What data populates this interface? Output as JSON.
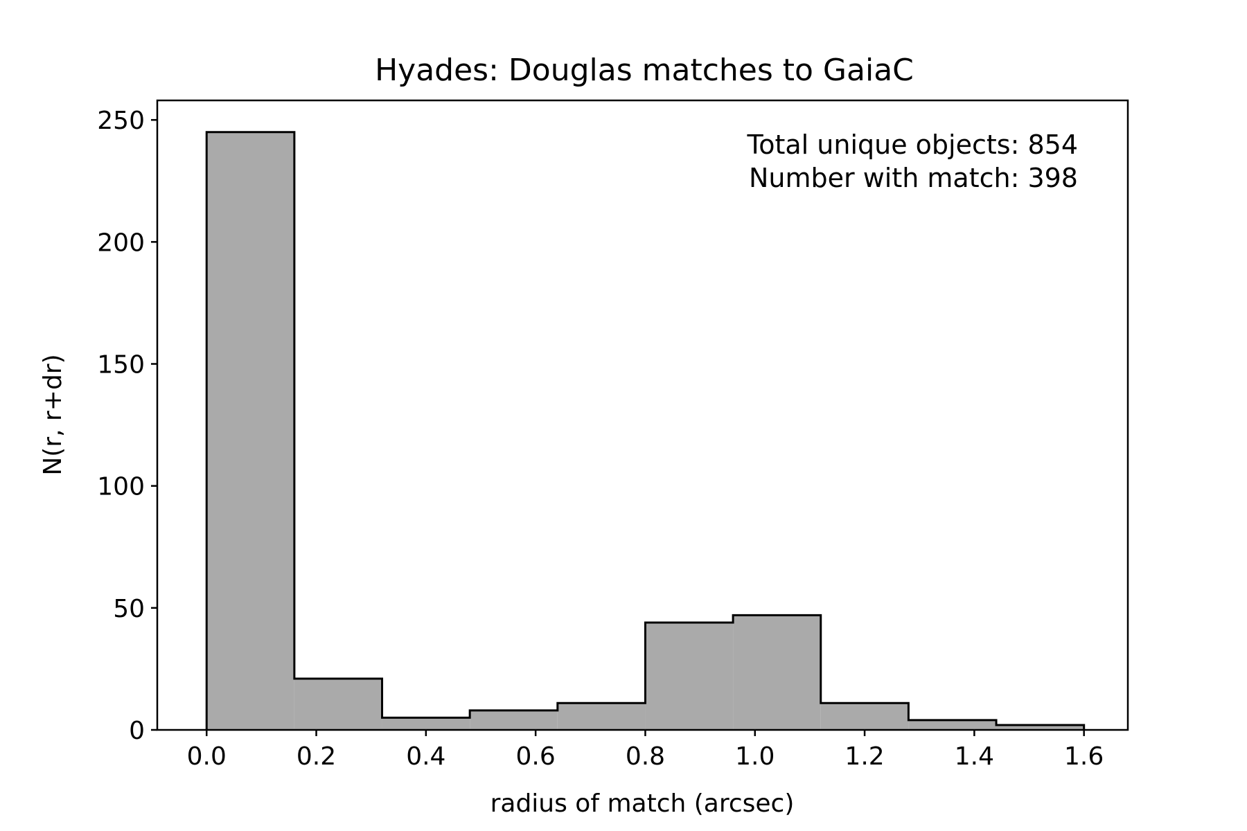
{
  "chart_data": {
    "type": "bar",
    "title": "Hyades: Douglas matches to GaiaC",
    "xlabel": "radius of match (arcsec)",
    "ylabel": "N(r, r+dr)",
    "bin_edges": [
      0.0,
      0.16,
      0.32,
      0.48,
      0.64,
      0.8,
      0.96,
      1.12,
      1.28,
      1.44,
      1.6
    ],
    "values": [
      245,
      21,
      5,
      8,
      11,
      44,
      47,
      11,
      4,
      2
    ],
    "xlim": [
      -0.09,
      1.68
    ],
    "ylim": [
      0,
      258
    ],
    "x_ticks": [
      0.0,
      0.2,
      0.4,
      0.6,
      0.8,
      1.0,
      1.2,
      1.4,
      1.6
    ],
    "x_tick_labels": [
      "0.0",
      "0.2",
      "0.4",
      "0.6",
      "0.8",
      "1.0",
      "1.2",
      "1.4",
      "1.6"
    ],
    "y_ticks": [
      0,
      50,
      100,
      150,
      200,
      250
    ],
    "y_tick_labels": [
      "0",
      "50",
      "100",
      "150",
      "200",
      "250"
    ],
    "grid": false,
    "annotations": [
      "Total unique objects: 854",
      "Number with match: 398"
    ],
    "annotation_placement": "top-right",
    "colors": {
      "bar_fill": "#aaaaaa",
      "bar_edge": "#000000",
      "axes": "#000000",
      "background": "#ffffff"
    }
  }
}
